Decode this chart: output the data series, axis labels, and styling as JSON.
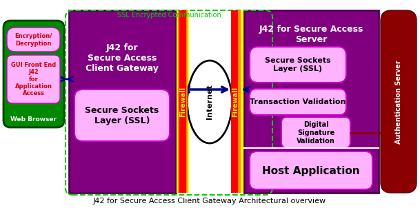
{
  "title": "J42 for Secure Access Client Gateway Architectural overview",
  "bg_color": "#ffffff",
  "ssl_label": "SSL Encrypted Communication",
  "ssl_box_color": "#00cc00",
  "client_box_color": "#800080",
  "client_title": "J42 for\nSecure Access\nClient Gateway",
  "client_ssl_label": "Secure Sockets\nLayer (SSL)",
  "client_ssl_bg": "#ffb3ff",
  "green_box_color": "#006600",
  "green_box_fill": "#008800",
  "enc_label": "Encryption/\nDecryption",
  "gui_label": "GUI Front End\nJ42\nfor\nApplication\nAccess",
  "web_label": "Web Browser",
  "pink_label_color": "#ffb3ff",
  "firewall_red": "#ff0000",
  "firewall_orange": "#ff8c00",
  "firewall_yellow": "#ffff00",
  "internet_label": "Internet",
  "server_box_color": "#800080",
  "server_title": "J42 for Secure Access\nServer",
  "server_ssl_label": "Secure Sockets\nLayer (SSL)",
  "server_tv_label": "Transaction Validation",
  "server_dsv_label": "Digital\nSignature\nValidation",
  "host_label": "Host Application",
  "auth_label": "Authentication Server",
  "auth_color": "#8b0000",
  "arrow_color": "#00008b"
}
